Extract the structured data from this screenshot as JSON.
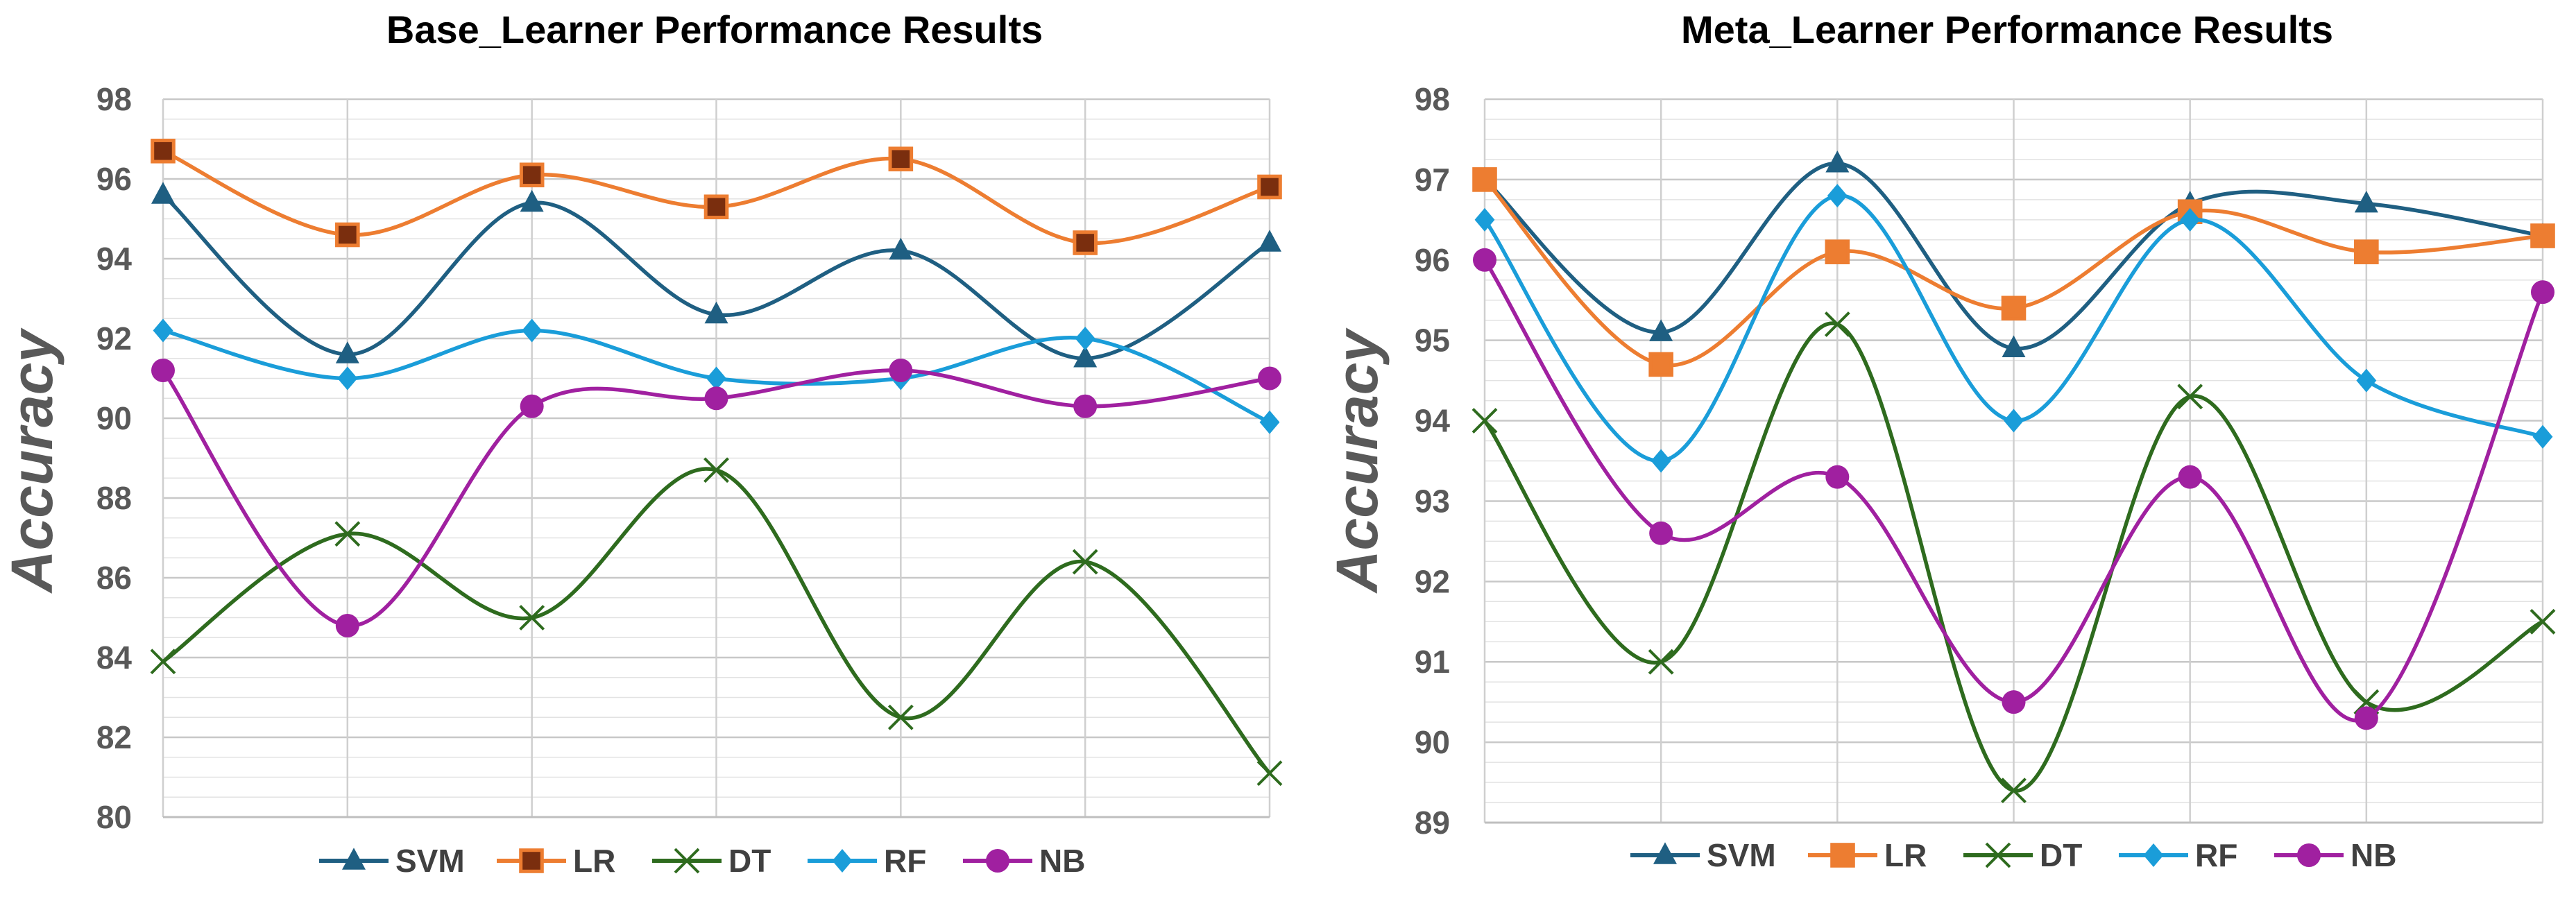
{
  "chart_data": [
    {
      "type": "line",
      "title": "Base_Learner Performance Results",
      "xlabel": "",
      "ylabel": "Accuracy",
      "ylim": [
        80,
        98
      ],
      "yticks": [
        80,
        82,
        84,
        86,
        88,
        90,
        92,
        94,
        96,
        98
      ],
      "x": [
        1,
        2,
        3,
        4,
        5,
        6,
        7
      ],
      "grid": true,
      "legend": "bottom",
      "series": [
        {
          "name": "SVM",
          "color": "#1f5f82",
          "marker": "triangle",
          "values": [
            95.6,
            91.6,
            95.4,
            92.6,
            94.2,
            91.5,
            94.4
          ]
        },
        {
          "name": "LR",
          "color": "#ed7d31",
          "marker": "square-dark",
          "values": [
            96.7,
            94.6,
            96.1,
            95.3,
            96.5,
            94.4,
            95.8
          ]
        },
        {
          "name": "DT",
          "color": "#2e6b1e",
          "marker": "x",
          "values": [
            83.9,
            87.1,
            85.0,
            88.7,
            82.5,
            86.4,
            81.1
          ]
        },
        {
          "name": "RF",
          "color": "#1a9dd9",
          "marker": "diamond",
          "values": [
            92.2,
            91.0,
            92.2,
            91.0,
            91.0,
            92.0,
            89.9
          ]
        },
        {
          "name": "NB",
          "color": "#a020a0",
          "marker": "circle",
          "values": [
            91.2,
            84.8,
            90.3,
            90.5,
            91.2,
            90.3,
            91.0
          ]
        }
      ]
    },
    {
      "type": "line",
      "title": "Meta_Learner Performance Results",
      "xlabel": "",
      "ylabel": "Accuracy",
      "ylim": [
        89,
        98
      ],
      "yticks": [
        89,
        90,
        91,
        92,
        93,
        94,
        95,
        96,
        97,
        98
      ],
      "x": [
        1,
        2,
        3,
        4,
        5,
        6,
        7
      ],
      "grid": true,
      "legend": "bottom",
      "series": [
        {
          "name": "SVM",
          "color": "#1f5f82",
          "marker": "triangle",
          "values": [
            97.0,
            95.1,
            97.2,
            94.9,
            96.7,
            96.7,
            96.3
          ]
        },
        {
          "name": "LR",
          "color": "#ed7d31",
          "marker": "square",
          "values": [
            97.0,
            94.7,
            96.1,
            95.4,
            96.6,
            96.1,
            96.3
          ]
        },
        {
          "name": "DT",
          "color": "#2e6b1e",
          "marker": "x",
          "values": [
            94.0,
            91.0,
            95.2,
            89.4,
            94.3,
            90.5,
            91.5
          ]
        },
        {
          "name": "RF",
          "color": "#1a9dd9",
          "marker": "diamond",
          "values": [
            96.5,
            93.5,
            96.8,
            94.0,
            96.5,
            94.5,
            93.8
          ]
        },
        {
          "name": "NB",
          "color": "#a020a0",
          "marker": "circle",
          "values": [
            96.0,
            92.6,
            93.3,
            90.5,
            93.3,
            90.3,
            95.6
          ]
        }
      ]
    }
  ]
}
